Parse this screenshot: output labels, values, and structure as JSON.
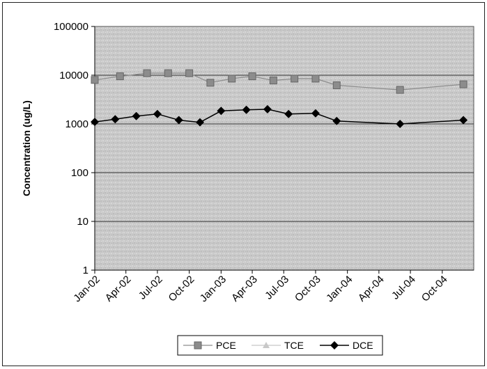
{
  "chart_data": {
    "type": "line",
    "title": "",
    "xlabel": "",
    "ylabel": "Concentration (ug/L)",
    "y_scale": "log",
    "ylim": [
      1,
      100000
    ],
    "y_ticks": [
      "1",
      "10",
      "100",
      "1000",
      "10000",
      "100000"
    ],
    "x_ticks": [
      "Jan-02",
      "Apr-02",
      "Jul-02",
      "Oct-02",
      "Jan-03",
      "Apr-03",
      "Jul-03",
      "Oct-03",
      "Jan-04",
      "Apr-04",
      "Jul-04",
      "Oct-04"
    ],
    "xlim": [
      "2002-01-01",
      "2004-12-31"
    ],
    "grid": "horizontal major gridlines",
    "legend_position": "bottom",
    "series": [
      {
        "name": "PCE",
        "color": "#8c8c8c",
        "marker": "square",
        "points": [
          {
            "x": "2002-01-01",
            "y": 8000
          },
          {
            "x": "2002-03-15",
            "y": 9500
          },
          {
            "x": "2002-06-01",
            "y": 11000
          },
          {
            "x": "2002-08-01",
            "y": 11000
          },
          {
            "x": "2002-10-01",
            "y": 11000
          },
          {
            "x": "2002-12-01",
            "y": 7000
          },
          {
            "x": "2003-02-01",
            "y": 8500
          },
          {
            "x": "2003-04-01",
            "y": 9500
          },
          {
            "x": "2003-06-01",
            "y": 7800
          },
          {
            "x": "2003-08-01",
            "y": 8500
          },
          {
            "x": "2003-10-01",
            "y": 8500
          },
          {
            "x": "2003-12-01",
            "y": 6200
          },
          {
            "x": "2004-06-01",
            "y": 5000
          },
          {
            "x": "2004-12-01",
            "y": 6500
          }
        ]
      },
      {
        "name": "TCE",
        "color": "#c8c8c8",
        "marker": "triangle",
        "points": []
      },
      {
        "name": "DCE",
        "color": "#000000",
        "marker": "diamond",
        "points": [
          {
            "x": "2002-01-01",
            "y": 1100
          },
          {
            "x": "2002-03-01",
            "y": 1250
          },
          {
            "x": "2002-05-01",
            "y": 1450
          },
          {
            "x": "2002-07-01",
            "y": 1600
          },
          {
            "x": "2002-09-01",
            "y": 1200
          },
          {
            "x": "2002-11-01",
            "y": 1080
          },
          {
            "x": "2003-01-01",
            "y": 1850
          },
          {
            "x": "2003-03-15",
            "y": 1950
          },
          {
            "x": "2003-05-15",
            "y": 2000
          },
          {
            "x": "2003-07-15",
            "y": 1600
          },
          {
            "x": "2003-10-01",
            "y": 1650
          },
          {
            "x": "2003-12-01",
            "y": 1150
          },
          {
            "x": "2004-06-01",
            "y": 1000
          },
          {
            "x": "2004-12-01",
            "y": 1200
          }
        ]
      }
    ]
  }
}
